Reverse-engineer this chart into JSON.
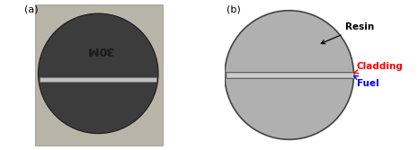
{
  "fig_width": 4.65,
  "fig_height": 1.67,
  "dpi": 100,
  "label_a": "(a)",
  "label_b": "(b)",
  "bg_color": "#ffffff",
  "photo_bg_color": "#b8b4a8",
  "disk_color": "#3c3c3c",
  "disk_edge_color": "#1a1a1a",
  "strip_color": "#c8c8c8",
  "strip_edge_color": "#808080",
  "text_30M_color": "#1a1a1a",
  "resin_color": "#b0b0b0",
  "resin_edge_color": "#444444",
  "cladding_outer_color": "#e8e8e8",
  "cladding_inner_color": "#d0d0d0",
  "fuel_color": "#c0c0c0",
  "resin_label": "Resin",
  "cladding_label": "Cladding",
  "fuel_label": "Fuel",
  "label_fontsize": 8,
  "annotation_fontsize": 7.5
}
